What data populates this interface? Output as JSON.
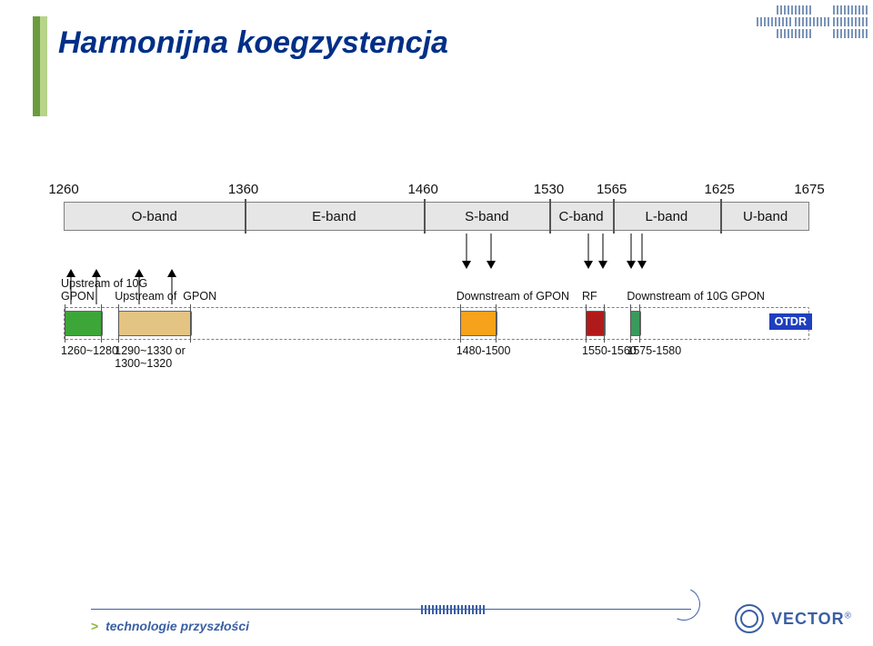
{
  "title": "Harmonijna koegzystencja",
  "axis": {
    "min": 1260,
    "max": 1675,
    "ticks": [
      1260,
      1360,
      1460,
      1530,
      1565,
      1625,
      1675
    ]
  },
  "bands": [
    {
      "label": "O-band",
      "from": 1260,
      "to": 1360
    },
    {
      "label": "E-band",
      "from": 1360,
      "to": 1460
    },
    {
      "label": "S-band",
      "from": 1460,
      "to": 1530
    },
    {
      "label": "C-band",
      "from": 1530,
      "to": 1565
    },
    {
      "label": "L-band",
      "from": 1565,
      "to": 1625
    },
    {
      "label": "U-band",
      "from": 1625,
      "to": 1675
    }
  ],
  "colors": {
    "strip_fill": "#e6e6e6",
    "title": "#002f87",
    "green": "#3da638",
    "tan": "#e4c483",
    "orange": "#f6a21b",
    "red": "#b11a1a",
    "teal": "#3a9a5c",
    "otdr": "#1f3fbf",
    "accent_green": "#6a9c3e",
    "brand": "#3b5fa4"
  },
  "arrows_up": [
    1264,
    1278,
    1302,
    1320
  ],
  "arrows_dn": [
    1484,
    1498,
    1552,
    1560,
    1576,
    1582
  ],
  "channels": [
    {
      "id": "up10g",
      "from": 1260,
      "to": 1280,
      "color": "green",
      "labelAbove": "Upstream of 10G\nGPON",
      "labelBelow": "1260~1280"
    },
    {
      "id": "upgpon",
      "from": 1290,
      "to": 1330,
      "color": "tan",
      "labelAbove": "Upstream of  GPON",
      "labelBelow": "1290~1330 or\n1300~1320"
    },
    {
      "id": "dngpon",
      "from": 1480,
      "to": 1500,
      "color": "orange",
      "labelAbove": "Downstream of GPON",
      "labelBelow": "1480-1500"
    },
    {
      "id": "rf",
      "from": 1550,
      "to": 1560,
      "color": "red",
      "labelAbove": "RF",
      "labelBelow": "1550-1560"
    },
    {
      "id": "dn10g",
      "from": 1575,
      "to": 1580,
      "color": "teal",
      "labelAbove": "Downstream of 10G GPON",
      "labelBelow": "1575-1580"
    }
  ],
  "otdr_label": "OTDR",
  "footer": {
    "tagline_prefix": ">",
    "tagline": "technologie przyszłości",
    "logo_text": "VECTOR",
    "reg": "®"
  }
}
